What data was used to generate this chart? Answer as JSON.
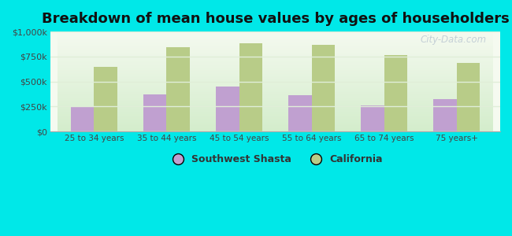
{
  "title": "Breakdown of mean house values by ages of householders",
  "categories": [
    "25 to 34 years",
    "35 to 44 years",
    "45 to 54 years",
    "55 to 64 years",
    "65 to 74 years",
    "75 years+"
  ],
  "southwest_shasta": [
    245000,
    375000,
    450000,
    365000,
    263000,
    325000
  ],
  "california": [
    645000,
    840000,
    880000,
    865000,
    768000,
    685000
  ],
  "bar_color_shasta": "#c0a0d0",
  "bar_color_california": "#b8cc88",
  "background_outer": "#00e8e8",
  "background_inner_bottom": "#d4edcc",
  "background_inner_top": "#f5faf0",
  "title_fontsize": 13,
  "ylim": [
    0,
    1000000
  ],
  "yticks": [
    0,
    250000,
    500000,
    750000,
    1000000
  ],
  "ytick_labels": [
    "$0",
    "$250k",
    "$500k",
    "$750k",
    "$1,000k"
  ],
  "legend_shasta": "Southwest Shasta",
  "legend_california": "California",
  "bar_width": 0.32,
  "grid_color": "#e0eed8",
  "watermark": "City-Data.com"
}
